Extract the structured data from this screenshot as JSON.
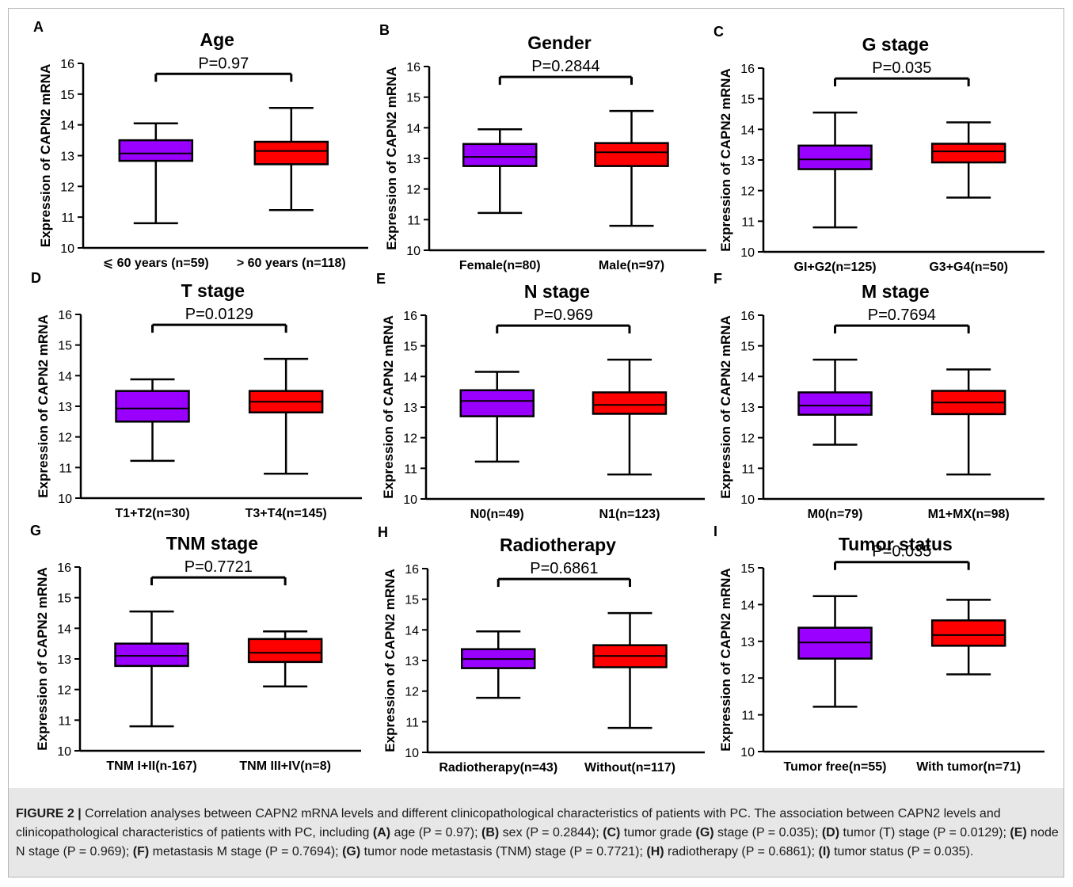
{
  "chart_data": [
    {
      "type": "box",
      "panel_letter": "A",
      "title": "Age",
      "ylabel": "Expression of CAPN2 mRNA",
      "ylim": [
        10,
        16
      ],
      "yticks": [
        10,
        11,
        12,
        13,
        14,
        15,
        16
      ],
      "p_value": "P=0.97",
      "categories": [
        "⩽ 60 years (n=59)",
        "> 60 years (n=118)"
      ],
      "boxes": [
        {
          "min": 10.8,
          "q1": 12.83,
          "median": 13.07,
          "q3": 13.5,
          "max": 14.05
        },
        {
          "min": 11.23,
          "q1": 12.72,
          "median": 13.15,
          "q3": 13.45,
          "max": 14.55
        }
      ]
    },
    {
      "type": "box",
      "panel_letter": "B",
      "title": "Gender",
      "ylabel": "Expression of CAPN2 mRNA",
      "ylim": [
        10,
        16
      ],
      "yticks": [
        10,
        11,
        12,
        13,
        14,
        15,
        16
      ],
      "p_value": "P=0.2844",
      "categories": [
        "Female(n=80)",
        "Male(n=97)"
      ],
      "boxes": [
        {
          "min": 11.22,
          "q1": 12.75,
          "median": 13.05,
          "q3": 13.47,
          "max": 13.95
        },
        {
          "min": 10.8,
          "q1": 12.75,
          "median": 13.2,
          "q3": 13.5,
          "max": 14.55
        }
      ]
    },
    {
      "type": "box",
      "panel_letter": "C",
      "title": "G stage",
      "ylabel": "Expression of CAPN2 mRNA",
      "ylim": [
        10,
        16
      ],
      "yticks": [
        10,
        11,
        12,
        13,
        14,
        15,
        16
      ],
      "p_value": "P=0.035",
      "categories": [
        "GI+G2(n=125)",
        "G3+G4(n=50)"
      ],
      "boxes": [
        {
          "min": 10.8,
          "q1": 12.7,
          "median": 13.02,
          "q3": 13.47,
          "max": 14.55
        },
        {
          "min": 11.77,
          "q1": 12.92,
          "median": 13.28,
          "q3": 13.53,
          "max": 14.23
        }
      ]
    },
    {
      "type": "box",
      "panel_letter": "D",
      "title": "T stage",
      "ylabel": "Expression of CAPN2 mRNA",
      "ylim": [
        10,
        16
      ],
      "yticks": [
        10,
        11,
        12,
        13,
        14,
        15,
        16
      ],
      "p_value": "P=0.0129",
      "categories": [
        "T1+T2(n=30)",
        "T3+T4(n=145)"
      ],
      "boxes": [
        {
          "min": 11.22,
          "q1": 12.5,
          "median": 12.93,
          "q3": 13.5,
          "max": 13.88
        },
        {
          "min": 10.8,
          "q1": 12.8,
          "median": 13.15,
          "q3": 13.5,
          "max": 14.55
        }
      ]
    },
    {
      "type": "box",
      "panel_letter": "E",
      "title": "N stage",
      "ylabel": "Expression of CAPN2 mRNA",
      "ylim": [
        10,
        16
      ],
      "yticks": [
        10,
        11,
        12,
        13,
        14,
        15,
        16
      ],
      "p_value": "P=0.969",
      "categories": [
        "N0(n=49)",
        "N1(n=123)"
      ],
      "boxes": [
        {
          "min": 11.22,
          "q1": 12.7,
          "median": 13.2,
          "q3": 13.55,
          "max": 14.15
        },
        {
          "min": 10.8,
          "q1": 12.78,
          "median": 13.07,
          "q3": 13.48,
          "max": 14.55
        }
      ]
    },
    {
      "type": "box",
      "panel_letter": "F",
      "title": "M stage",
      "ylabel": "Expression of CAPN2 mRNA",
      "ylim": [
        10,
        16
      ],
      "yticks": [
        10,
        11,
        12,
        13,
        14,
        15,
        16
      ],
      "p_value": "P=0.7694",
      "categories": [
        "M0(n=79)",
        "M1+MX(n=98)"
      ],
      "boxes": [
        {
          "min": 11.77,
          "q1": 12.75,
          "median": 13.05,
          "q3": 13.48,
          "max": 14.55
        },
        {
          "min": 10.8,
          "q1": 12.77,
          "median": 13.15,
          "q3": 13.53,
          "max": 14.23
        }
      ]
    },
    {
      "type": "box",
      "panel_letter": "G",
      "title": "TNM stage",
      "ylabel": "Expression of CAPN2 mRNA",
      "ylim": [
        10,
        16
      ],
      "yticks": [
        10,
        11,
        12,
        13,
        14,
        15,
        16
      ],
      "p_value": "P=0.7721",
      "categories": [
        "TNM I+II(n-167)",
        "TNM III+IV(n=8)"
      ],
      "boxes": [
        {
          "min": 10.8,
          "q1": 12.77,
          "median": 13.1,
          "q3": 13.5,
          "max": 14.55
        },
        {
          "min": 12.1,
          "q1": 12.9,
          "median": 13.2,
          "q3": 13.65,
          "max": 13.9
        }
      ]
    },
    {
      "type": "box",
      "panel_letter": "H",
      "title": "Radiotherapy",
      "ylabel": "Expression of CAPN2 mRNA",
      "ylim": [
        10,
        16
      ],
      "yticks": [
        10,
        11,
        12,
        13,
        14,
        15,
        16
      ],
      "p_value": "P=0.6861",
      "categories": [
        "Radiotherapy(n=43)",
        "Without(n=117)"
      ],
      "boxes": [
        {
          "min": 11.78,
          "q1": 12.75,
          "median": 13.05,
          "q3": 13.37,
          "max": 13.95
        },
        {
          "min": 10.8,
          "q1": 12.78,
          "median": 13.15,
          "q3": 13.5,
          "max": 14.55
        }
      ]
    },
    {
      "type": "box",
      "panel_letter": "I",
      "title": "Tumor status",
      "ylabel": "Expression of CAPN2 mRNA",
      "ylim": [
        10,
        15
      ],
      "yticks": [
        10,
        11,
        12,
        13,
        14,
        15
      ],
      "p_value": "P=0.035",
      "categories": [
        "Tumor free(n=55)",
        "With tumor(n=71)"
      ],
      "boxes": [
        {
          "min": 11.22,
          "q1": 12.53,
          "median": 12.97,
          "q3": 13.37,
          "max": 14.23
        },
        {
          "min": 12.1,
          "q1": 12.88,
          "median": 13.17,
          "q3": 13.57,
          "max": 14.13
        }
      ]
    }
  ],
  "colors": {
    "group1_fill": "#9a00ff",
    "group2_fill": "#ff0000",
    "box_stroke": "#000000",
    "caption_band": "#e7e7e8",
    "frame_border": "#b5b5b5"
  },
  "caption": {
    "figure_label": "FIGURE 2 |",
    "t1": " Correlation analyses between CAPN2 mRNA levels and different clinicopathological characteristics of patients with PC. The association between CAPN2 levels and clinicopathological characteristics of patients with PC, including ",
    "a": "(A)",
    "t_a": " age (P = 0.97); ",
    "b": "(B)",
    "t_b": " sex (P = 0.2844); ",
    "c": "(C)",
    "t_c1": " tumor grade ",
    "g_bold": "(G)",
    "t_c2": " stage (P = 0.035); ",
    "d": "(D)",
    "t_d": " tumor (T) stage (P = 0.0129); ",
    "e": "(E)",
    "t_e": " node N stage (P = 0.969); ",
    "f": "(F)",
    "t_f": " metastasis M stage (P = 0.7694); ",
    "g": "(G)",
    "t_g": " tumor node metastasis (TNM) stage (P = 0.7721); ",
    "h": "(H)",
    "t_h": " radiotherapy (P = 0.6861); ",
    "i": "(I)",
    "t_i": " tumor status (P = 0.035)."
  }
}
